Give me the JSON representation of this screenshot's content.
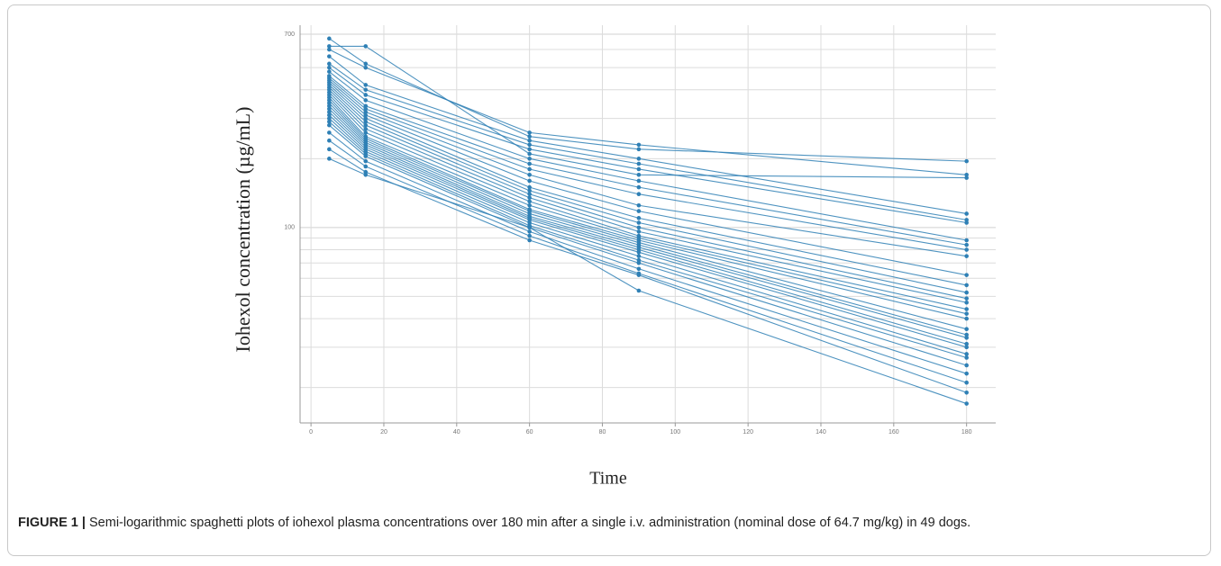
{
  "chart_data": {
    "type": "line",
    "ylabel": "Iohexol concentration (µg/mL)",
    "xlabel": "Time",
    "figure_label": "FIGURE 1 |",
    "caption": "Semi-logarithmic spaghetti plots of iohexol plasma concentrations over 180 min after a single i.v. administration (nominal dose of 64.7 mg/kg) in 49 dogs.",
    "x": [
      5,
      15,
      60,
      90,
      180
    ],
    "xlim": [
      -3,
      188
    ],
    "xticks": [
      0,
      20,
      40,
      60,
      80,
      100,
      120,
      140,
      160,
      180
    ],
    "ylim": [
      14,
      700
    ],
    "yticks": [
      100,
      700
    ],
    "y_minor_grid": [
      20,
      30,
      40,
      50,
      60,
      70,
      80,
      90,
      200,
      300,
      400,
      500,
      600
    ],
    "log_y": true,
    "grid": true,
    "color": "#2f80b5",
    "series": [
      {
        "values": [
          670,
          520,
          250,
          220,
          195
        ]
      },
      {
        "values": [
          620,
          620,
          210,
          170,
          165
        ]
      },
      {
        "values": [
          600,
          500,
          260,
          230,
          170
        ]
      },
      {
        "values": [
          560,
          420,
          240,
          200,
          115
        ]
      },
      {
        "values": [
          520,
          400,
          230,
          190,
          108
        ]
      },
      {
        "values": [
          500,
          380,
          220,
          180,
          105
        ]
      },
      {
        "values": [
          480,
          360,
          200,
          160,
          88
        ]
      },
      {
        "values": [
          460,
          340,
          190,
          150,
          84
        ]
      },
      {
        "values": [
          450,
          330,
          180,
          140,
          80
        ]
      },
      {
        "values": [
          440,
          320,
          170,
          125,
          75
        ]
      },
      {
        "values": [
          430,
          310,
          160,
          118,
          62
        ]
      },
      {
        "values": [
          420,
          300,
          150,
          110,
          56
        ]
      },
      {
        "values": [
          410,
          290,
          145,
          105,
          52
        ]
      },
      {
        "values": [
          400,
          280,
          140,
          100,
          49
        ]
      },
      {
        "values": [
          390,
          270,
          135,
          96,
          47
        ]
      },
      {
        "values": [
          380,
          260,
          130,
          92,
          44
        ]
      },
      {
        "values": [
          370,
          250,
          125,
          90,
          42
        ]
      },
      {
        "values": [
          360,
          245,
          120,
          88,
          40
        ]
      },
      {
        "values": [
          350,
          240,
          118,
          86,
          36
        ]
      },
      {
        "values": [
          340,
          235,
          115,
          84,
          34
        ]
      },
      {
        "values": [
          330,
          230,
          112,
          82,
          33
        ]
      },
      {
        "values": [
          320,
          225,
          110,
          80,
          31
        ]
      },
      {
        "values": [
          310,
          220,
          108,
          78,
          30
        ]
      },
      {
        "values": [
          300,
          215,
          105,
          75,
          28
        ]
      },
      {
        "values": [
          290,
          210,
          102,
          72,
          27
        ]
      },
      {
        "values": [
          280,
          205,
          100,
          70,
          25
        ]
      },
      {
        "values": [
          260,
          195,
          96,
          66,
          23
        ]
      },
      {
        "values": [
          240,
          185,
          92,
          63,
          21
        ]
      },
      {
        "values": [
          220,
          175,
          88,
          62,
          19
        ]
      },
      {
        "values": [
          200,
          170,
          100,
          53,
          17
        ]
      }
    ]
  }
}
